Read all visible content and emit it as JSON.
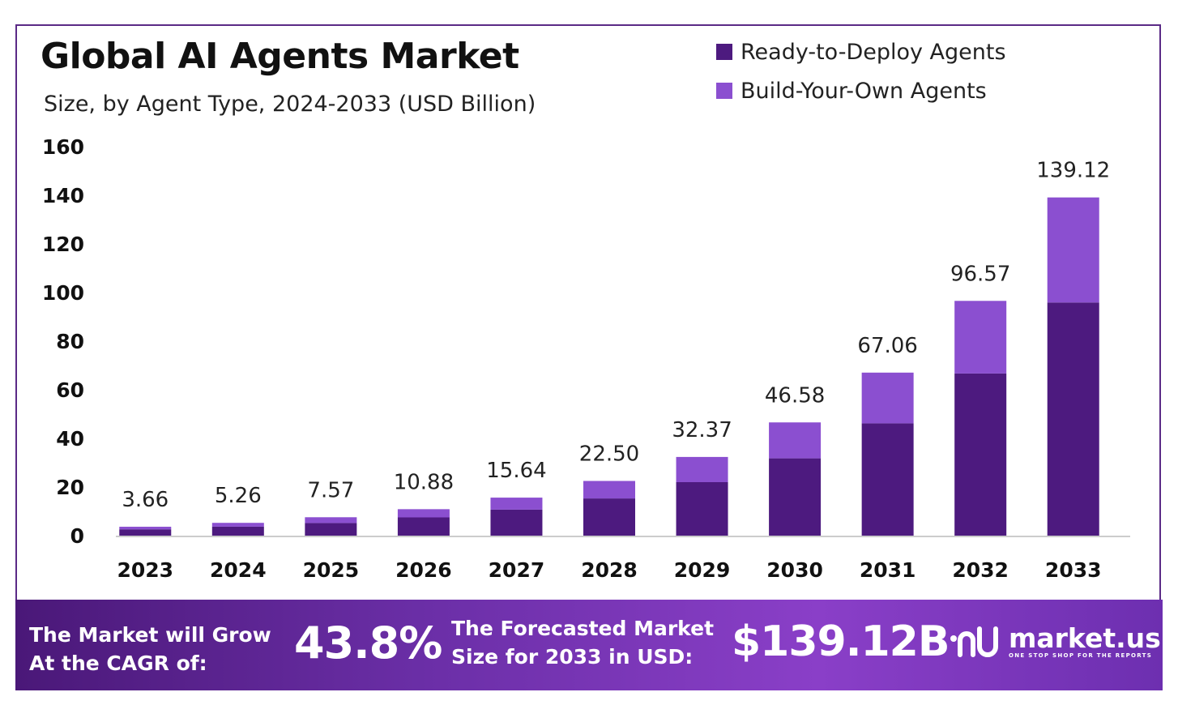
{
  "colors": {
    "ready_to_deploy": "#4d1a7f",
    "build_your_own": "#8b4fd0",
    "frame": "#5b2a86",
    "axis": "#cccccc"
  },
  "chart_data": {
    "type": "bar",
    "stacked": true,
    "title": "Global AI Agents Market",
    "subtitle": "Size, by Agent Type, 2024-2033 (USD Billion)",
    "categories": [
      "2023",
      "2024",
      "2025",
      "2026",
      "2027",
      "2028",
      "2029",
      "2030",
      "2031",
      "2032",
      "2033"
    ],
    "series": [
      {
        "name": "Ready-to-Deploy Agents",
        "values": [
          2.6,
          3.7,
          5.2,
          7.5,
          10.7,
          15.3,
          22.0,
          31.8,
          46.2,
          66.7,
          95.9
        ]
      },
      {
        "name": "Build-Your-Own Agents",
        "values": [
          1.06,
          1.56,
          2.37,
          3.38,
          4.94,
          7.2,
          10.37,
          14.78,
          20.86,
          29.87,
          43.22
        ]
      }
    ],
    "totals": [
      "3.66",
      "5.26",
      "7.57",
      "10.88",
      "15.64",
      "22.50",
      "32.37",
      "46.58",
      "67.06",
      "96.57",
      "139.12"
    ],
    "yticks": [
      "0",
      "20",
      "40",
      "60",
      "80",
      "100",
      "120",
      "140",
      "160"
    ],
    "ylim": [
      0,
      160
    ],
    "legend_position": "top-right",
    "grid": false
  },
  "banner": {
    "cagr_line1": "The Market will Grow",
    "cagr_line2": "At the CAGR of:",
    "cagr_value": "43.8%",
    "forecast_line1": "The Forecasted Market",
    "forecast_line2": "Size for 2033 in USD:",
    "forecast_value": "$139.12B",
    "brand_name": "market.us",
    "brand_tagline": "ONE STOP SHOP FOR THE REPORTS"
  }
}
